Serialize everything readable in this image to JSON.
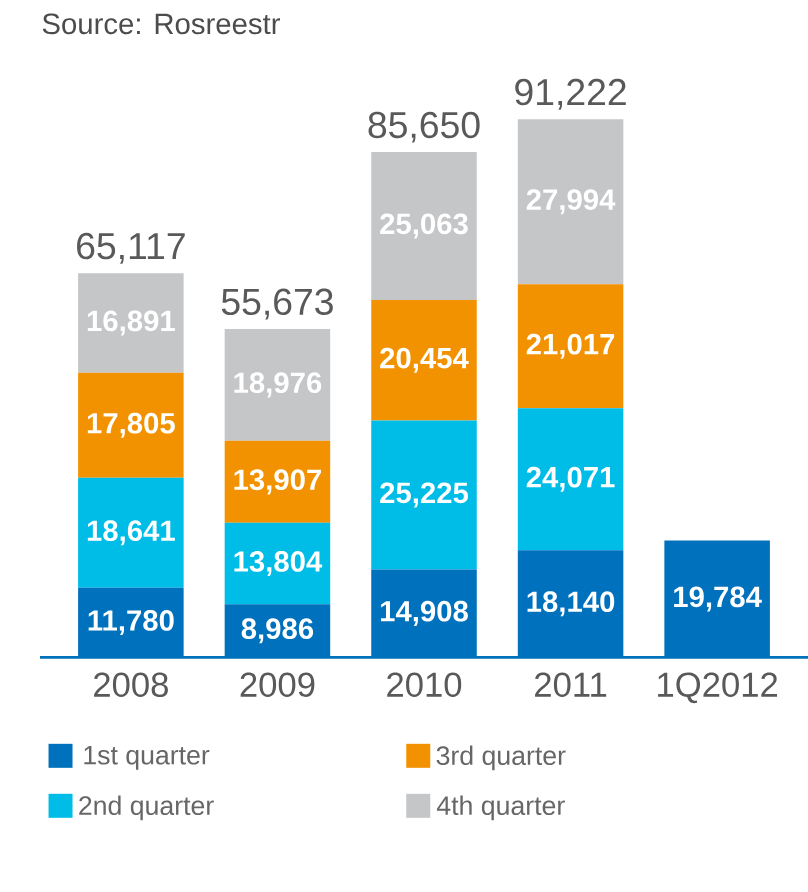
{
  "chart_data": {
    "type": "bar",
    "stacked": true,
    "annotations": [
      "Source: Rosreestr"
    ],
    "categories": [
      "2008",
      "2009",
      "2010",
      "2011",
      "1Q2012"
    ],
    "series": [
      {
        "name": "1st quarter",
        "color": "#0071bc",
        "values": [
          11780,
          8986,
          14908,
          18140,
          19784
        ],
        "value_labels": [
          "11,780",
          "8,986",
          "14,908",
          "18,140",
          "19,784"
        ]
      },
      {
        "name": "2nd quarter",
        "color": "#00bde8",
        "values": [
          18641,
          13804,
          25225,
          24071,
          null
        ],
        "value_labels": [
          "18,641",
          "13,804",
          "25,225",
          "24,071",
          null
        ]
      },
      {
        "name": "3rd quarter",
        "color": "#f39200",
        "values": [
          17805,
          13907,
          20454,
          21017,
          null
        ],
        "value_labels": [
          "17,805",
          "13,907",
          "20,454",
          "21,017",
          null
        ]
      },
      {
        "name": "4th quarter",
        "color": "#c5c6c8",
        "values": [
          16891,
          18976,
          25063,
          27994,
          null
        ],
        "value_labels": [
          "16,891",
          "18,976",
          "25,063",
          "27,994",
          null
        ]
      }
    ],
    "totals": [
      "65,117",
      "55,673",
      "85,650",
      "91,222",
      null
    ],
    "legend": "bottom"
  }
}
